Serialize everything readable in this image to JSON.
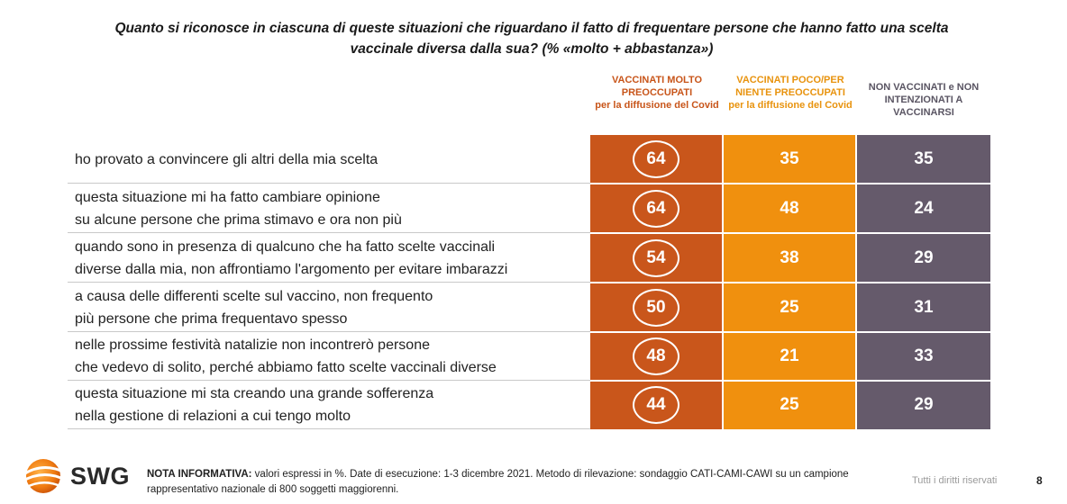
{
  "title": "Quanto si riconosce in ciascuna di queste situazioni che riguardano il fatto di frequentare persone che hanno fatto una scelta vaccinale diversa dalla sua? (% «molto + abbastanza»)",
  "columns": [
    {
      "main": "VACCINATI MOLTO PREOCCUPATI",
      "sub": "per la diffusione del Covid",
      "color": "#c9561b"
    },
    {
      "main": "VACCINATI POCO/PER NIENTE PREOCCUPATI",
      "sub": "per la diffusione del Covid",
      "color": "#f0900e"
    },
    {
      "main": "NON VACCINATI e NON INTENZIONATI A VACCINARSI",
      "sub": "",
      "color": "#655a6b"
    }
  ],
  "chart_data": {
    "type": "table",
    "title": "Quanto si riconosce in ciascuna di queste situazioni che riguardano il fatto di frequentare persone che hanno fatto una scelta vaccinale diversa dalla sua? (% «molto + abbastanza»)",
    "categories": [
      "ho provato a convincere gli altri della mia scelta",
      "questa situazione mi ha fatto cambiare opinione su alcune persone che prima stimavo e ora non più",
      "quando sono in presenza di qualcuno che ha fatto scelte vaccinali diverse dalla mia, non affrontiamo l'argomento per evitare imbarazzi",
      "a causa delle differenti scelte sul vaccino, non frequento più persone che prima frequentavo spesso",
      "nelle prossime festività natalizie non incontrerò persone che vedevo di solito, perché abbiamo fatto scelte vaccinali diverse",
      "questa situazione mi sta creando una grande sofferenza nella gestione di relazioni a cui tengo molto"
    ],
    "series": [
      {
        "name": "VACCINATI MOLTO PREOCCUPATI per la diffusione del Covid",
        "values": [
          64,
          64,
          54,
          50,
          48,
          44
        ]
      },
      {
        "name": "VACCINATI POCO/PER NIENTE PREOCCUPATI per la diffusione del Covid",
        "values": [
          35,
          48,
          38,
          25,
          21,
          25
        ]
      },
      {
        "name": "NON VACCINATI e NON INTENZIONATI A VACCINARSI",
        "values": [
          35,
          24,
          29,
          31,
          33,
          29
        ]
      }
    ]
  },
  "rows": [
    {
      "line1": "ho provato a convincere gli altri della mia scelta",
      "line2": ""
    },
    {
      "line1": "questa situazione mi ha fatto cambiare opinione",
      "line2": "su alcune persone che prima stimavo e ora non più"
    },
    {
      "line1": "quando sono in presenza di qualcuno che ha fatto scelte vaccinali",
      "line2": "diverse dalla mia, non affrontiamo l'argomento per evitare imbarazzi"
    },
    {
      "line1": "a causa delle differenti scelte sul vaccino, non frequento",
      "line2": "più persone che prima frequentavo spesso"
    },
    {
      "line1": "nelle prossime festività natalizie non incontrerò persone",
      "line2": "che vedevo di solito, perché abbiamo fatto scelte vaccinali diverse"
    },
    {
      "line1": "questa situazione mi sta creando una grande sofferenza",
      "line2": "nella gestione di relazioni a cui tengo molto"
    }
  ],
  "footer": {
    "logo_text": "SWG",
    "logo_icon": "swg-globe-icon",
    "note_label": "NOTA INFORMATIVA:",
    "note_text": " valori espressi in %. Date di esecuzione: 1-3 dicembre 2021. Metodo di rilevazione: sondaggio CATI-CAMI-CAWI su un campione rappresentativo nazionale di 800 soggetti maggiorenni.",
    "rights": "Tutti i diritti riservati",
    "page_number": "8"
  }
}
